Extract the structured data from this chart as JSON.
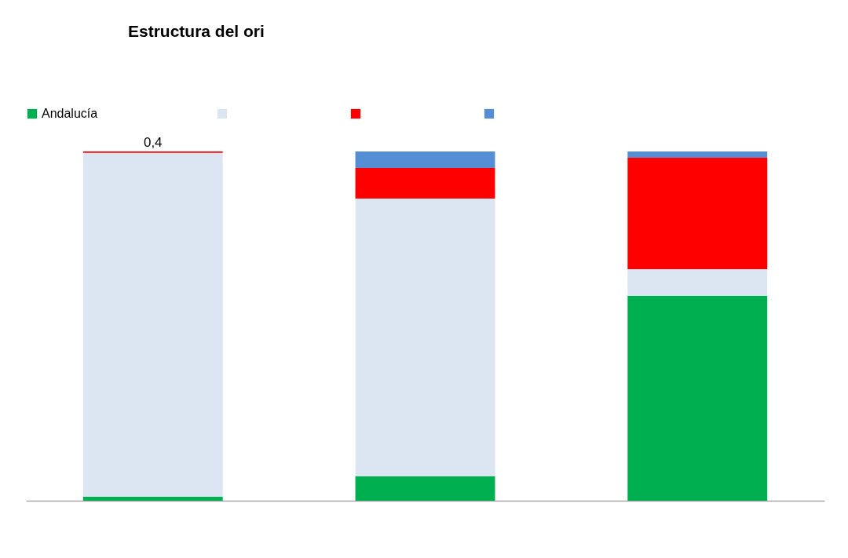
{
  "chart_data": {
    "type": "bar",
    "title": "Estructura del ori",
    "categories": [
      null,
      null,
      null
    ],
    "stacked": true,
    "ylim": [
      0,
      100
    ],
    "tick_labels": false,
    "grid": false,
    "legend": "top",
    "series": [
      {
        "name": "Andalucía",
        "color": "#00b050",
        "values": [
          1.1,
          7.0,
          58.7
        ]
      },
      {
        "color": "#dce6f2",
        "values": [
          98.5,
          79.5,
          7.6
        ]
      },
      {
        "color": "#ff0000",
        "values": [
          0.4,
          8.8,
          31.9
        ],
        "value_labels": [
          "0,4",
          null,
          null
        ]
      },
      {
        "color": "#558ed5",
        "values": [
          0,
          4.7,
          1.8
        ]
      }
    ]
  }
}
